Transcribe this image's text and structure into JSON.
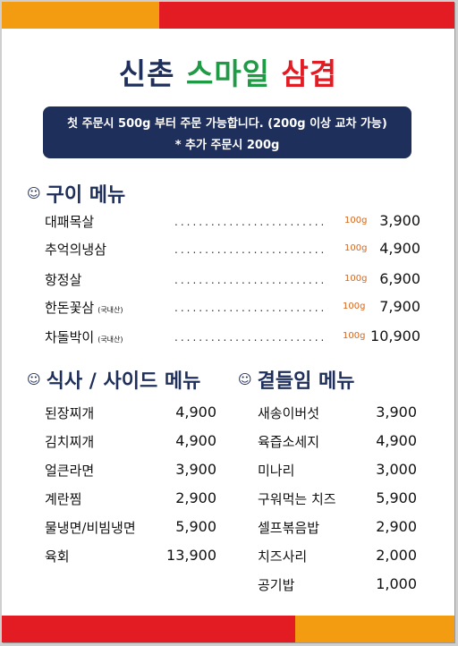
{
  "colors": {
    "yellow": "#f39c12",
    "red": "#e31b23",
    "green": "#1f9a45",
    "navy": "#1f2f5b",
    "gram": "#d4661a"
  },
  "title": {
    "part1": "신촌",
    "part2": "스마일",
    "part3": "삼겹"
  },
  "notice": {
    "line1": "첫 주문시 500g 부터 주문 가능합니다. (200g 이상 교차 가능)",
    "line2": "* 추가 주문시 200g"
  },
  "grill": {
    "heading": "구이 메뉴",
    "smile_icon": "smile-icon",
    "items": [
      {
        "name": "대패목살",
        "note": "",
        "gram": "100g",
        "price": "3,900"
      },
      {
        "name": "추억의냉삼",
        "note": "",
        "gram": "100g",
        "price": "4,900"
      },
      {
        "name": "항정살",
        "note": "",
        "gram": "100g",
        "price": "6,900"
      },
      {
        "name": "한돈꽃삼",
        "note": "(국내산)",
        "gram": "100g",
        "price": "7,900"
      },
      {
        "name": "차돌박이",
        "note": "(국내산)",
        "gram": "100g",
        "price": "10,900"
      }
    ]
  },
  "meal": {
    "heading": "식사 / 사이드 메뉴",
    "items": [
      {
        "name": "된장찌개",
        "price": "4,900"
      },
      {
        "name": "김치찌개",
        "price": "4,900"
      },
      {
        "name": "얼큰라면",
        "price": "3,900"
      },
      {
        "name": "계란찜",
        "price": "2,900"
      },
      {
        "name": "물냉면/비빔냉면",
        "price": "5,900"
      },
      {
        "name": "육회",
        "price": "13,900"
      }
    ]
  },
  "side": {
    "heading": "곁들임 메뉴",
    "items": [
      {
        "name": "새송이버섯",
        "price": "3,900"
      },
      {
        "name": "육즙소세지",
        "price": "4,900"
      },
      {
        "name": "미나리",
        "price": "3,000"
      },
      {
        "name": "구워먹는 치즈",
        "price": "5,900"
      },
      {
        "name": "셀프볶음밥",
        "price": "2,900"
      },
      {
        "name": "치즈사리",
        "price": "2,000"
      },
      {
        "name": "공기밥",
        "price": "1,000"
      }
    ]
  }
}
